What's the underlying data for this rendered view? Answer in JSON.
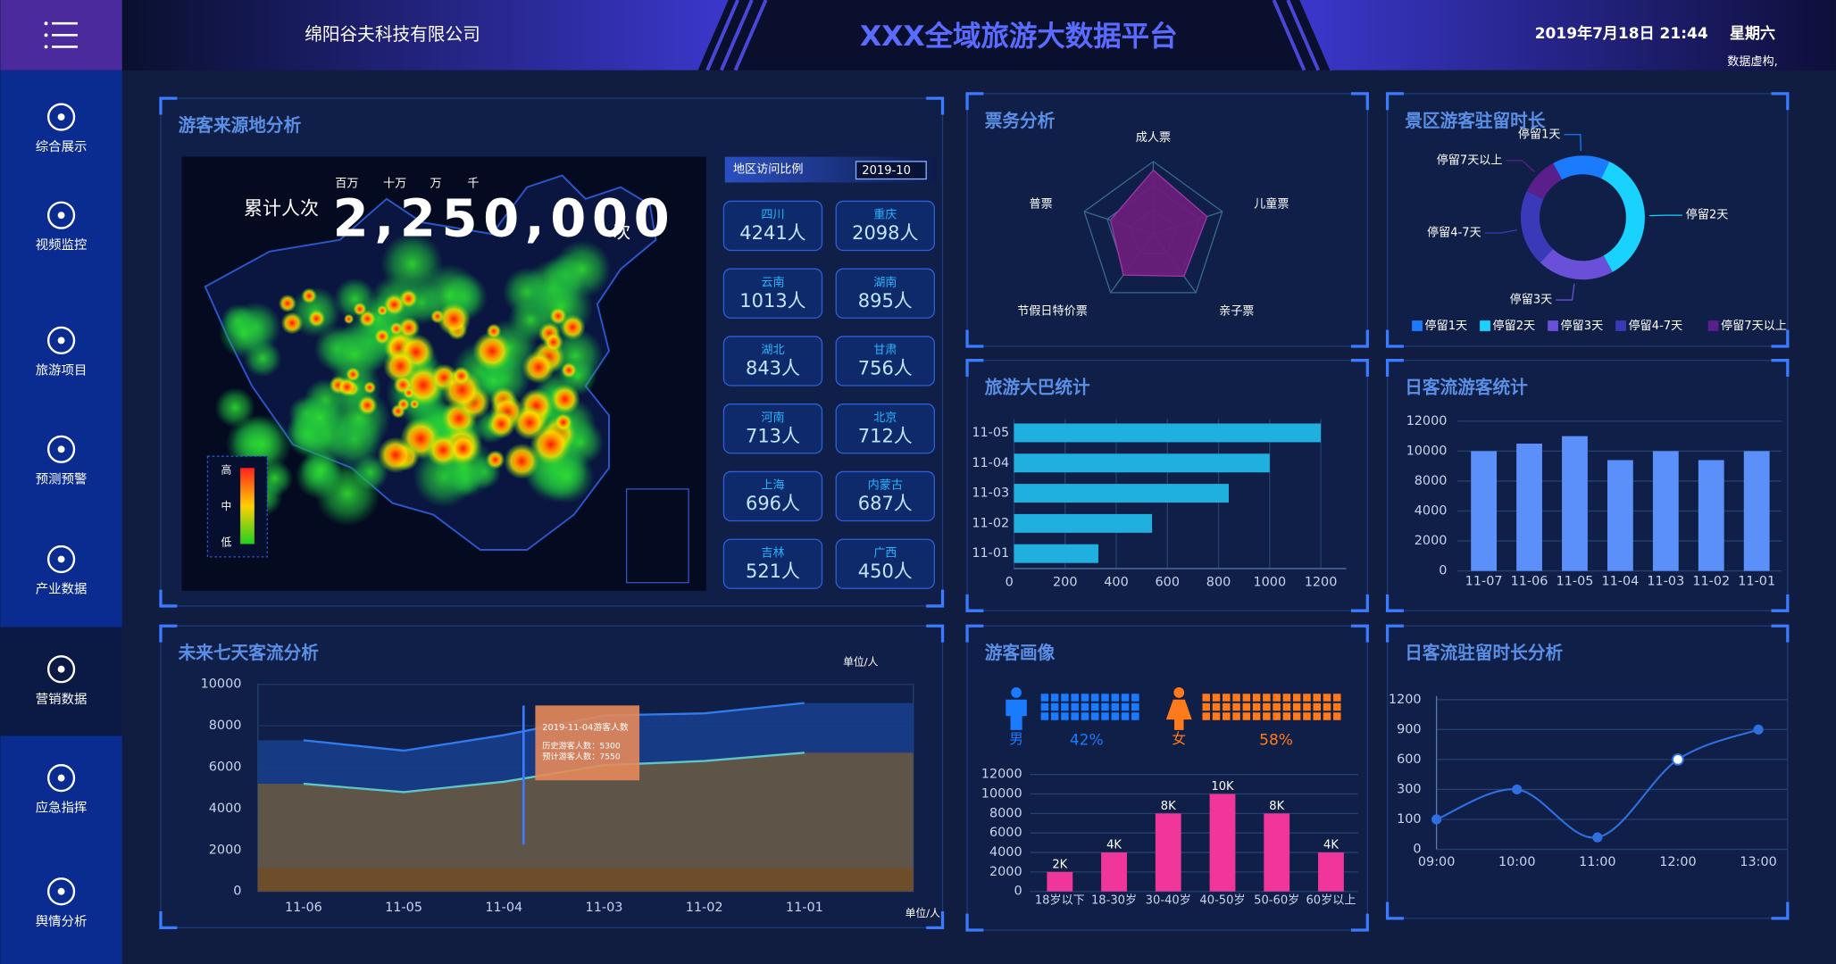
{
  "header": {
    "company": "绵阳谷夫科技有限公司",
    "title": "XXX全域旅游大数据平台",
    "datetime": "2019年7月18日  21:44",
    "weekday": "星期六",
    "note": "数据虚构,"
  },
  "sidebar": {
    "items": [
      "综合展示",
      "视频监控",
      "旅游项目",
      "预测预警",
      "产业数据",
      "营销数据",
      "应急指挥",
      "舆情分析"
    ],
    "active": 5
  },
  "visitor_source": {
    "title": "游客来源地分析",
    "counter_label": "累计人次",
    "counter_value": "2,250,000",
    "counter_suffix": "次",
    "counter_units": [
      "百万",
      "十万",
      "万",
      "千"
    ],
    "legend": [
      "高",
      "中",
      "低"
    ],
    "table_title": "地区访问比例",
    "month": "2019-10",
    "regions": [
      {
        "name": "四川",
        "count": "4241人"
      },
      {
        "name": "重庆",
        "count": "2098人"
      },
      {
        "name": "云南",
        "count": "1013人"
      },
      {
        "name": "湖南",
        "count": "895人"
      },
      {
        "name": "湖北",
        "count": "843人"
      },
      {
        "name": "甘肃",
        "count": "756人"
      },
      {
        "name": "河南",
        "count": "713人"
      },
      {
        "name": "北京",
        "count": "712人"
      },
      {
        "name": "上海",
        "count": "696人"
      },
      {
        "name": "内蒙古",
        "count": "687人"
      },
      {
        "name": "吉林",
        "count": "521人"
      },
      {
        "name": "广西",
        "count": "450人"
      }
    ]
  },
  "ticket_analysis": {
    "title": "票务分析",
    "type": "radar",
    "indicators": [
      "成人票",
      "儿童票",
      "亲子票",
      "节假日特价票",
      "普票"
    ],
    "values": [
      88,
      78,
      72,
      70,
      62
    ],
    "max": 100,
    "color": "#6a1f7a"
  },
  "stay_duration": {
    "title": "景区游客驻留时长",
    "type": "donut",
    "categories": [
      "停留1天",
      "停留2天",
      "停留3天",
      "停留4-7天",
      "停留7天以上"
    ],
    "values": [
      15,
      35,
      20,
      20,
      10
    ],
    "colors": [
      "#1a7bff",
      "#19d2ff",
      "#6a4fd8",
      "#3a3ab8",
      "#5a1f8a"
    ]
  },
  "tour_bus": {
    "title": "旅游大巴统计",
    "type": "hbar",
    "categories": [
      "11-05",
      "11-04",
      "11-03",
      "11-02",
      "11-01"
    ],
    "values": [
      1200,
      1000,
      840,
      540,
      330
    ],
    "xlim": [
      0,
      1300
    ],
    "xticks": [
      0,
      200,
      400,
      600,
      800,
      1000,
      1200
    ],
    "color": "#1fb0e0"
  },
  "daily_visitors": {
    "title": "日客流游客统计",
    "type": "bar",
    "categories": [
      "11-07",
      "11-06",
      "11-05",
      "11-04",
      "11-03",
      "11-02",
      "11-01"
    ],
    "values": [
      10000,
      10500,
      11000,
      9400,
      10000,
      9400,
      10000
    ],
    "ylim": [
      0,
      12000
    ],
    "yticks": [
      0,
      2000,
      4000,
      8000,
      10000,
      12000
    ],
    "color": "#5b8ff9"
  },
  "forecast": {
    "title": "未来七天客流分析",
    "type": "area",
    "categories": [
      "11-06",
      "11-05",
      "11-04",
      "11-03",
      "11-02",
      "11-01"
    ],
    "series": [
      {
        "color": "#2f7bef",
        "values": [
          7300,
          6800,
          7550,
          8500,
          8600,
          9100
        ]
      },
      {
        "color": "#5fc6c8",
        "values": [
          5200,
          4800,
          5300,
          6100,
          6300,
          6700
        ]
      }
    ],
    "ylim": [
      0,
      10000
    ],
    "yticks": [
      0,
      2000,
      4000,
      6000,
      8000,
      10000
    ],
    "y_unit": "单位/人",
    "x_unit": "单位/人",
    "tooltip": {
      "title": "2019-11-04游客人数",
      "lines": [
        "历史游客人数：5300",
        "预计游客人数：7550"
      ]
    }
  },
  "portrait": {
    "title": "游客画像",
    "gender": [
      {
        "label": "男",
        "value": 42,
        "value_label": "42%",
        "color": "#1a7bff"
      },
      {
        "label": "女",
        "value": 58,
        "value_label": "58%",
        "color": "#ff7a1a"
      }
    ],
    "age": {
      "type": "bar",
      "categories": [
        "18岁以下",
        "18-30岁",
        "30-40岁",
        "40-50岁",
        "50-60岁",
        "60岁以上"
      ],
      "values": [
        2000,
        4000,
        8000,
        10000,
        8000,
        4000
      ],
      "value_labels": [
        "2K",
        "4K",
        "8K",
        "10K",
        "8K",
        "4K"
      ],
      "ylim": [
        0,
        12000
      ],
      "yticks": [
        0,
        2000,
        4000,
        6000,
        8000,
        10000,
        12000
      ],
      "color": "#f0359b"
    }
  },
  "stay_analysis": {
    "title": "日客流驻留时长分析",
    "type": "line",
    "categories": [
      "09:00",
      "10:00",
      "11:00",
      "12:00",
      "13:00"
    ],
    "values": [
      100,
      300,
      40,
      600,
      900
    ],
    "ylim": [
      0,
      1200
    ],
    "yticks": [
      0,
      100,
      300,
      600,
      900,
      1200
    ],
    "color": "#2f6fe0"
  }
}
